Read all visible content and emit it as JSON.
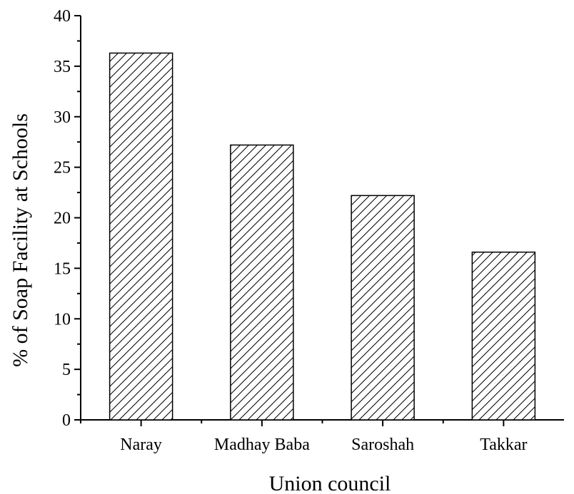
{
  "chart_data": {
    "type": "bar",
    "title": "",
    "categories": [
      "Naray",
      "Madhay Baba",
      "Saroshah",
      "Takkar"
    ],
    "values": [
      36.3,
      27.2,
      22.2,
      16.6
    ],
    "xlabel": "Union council",
    "ylabel": "% of Soap Facility at Schools",
    "ylim": [
      0,
      40
    ],
    "yticks": [
      0,
      5,
      10,
      15,
      20,
      25,
      30,
      35,
      40
    ],
    "bar_fill": "diagonal-hatch",
    "colors": {
      "bar_stroke": "#000000",
      "hatch": "#000000",
      "background": "#ffffff"
    },
    "grid": false,
    "legend": "none"
  }
}
